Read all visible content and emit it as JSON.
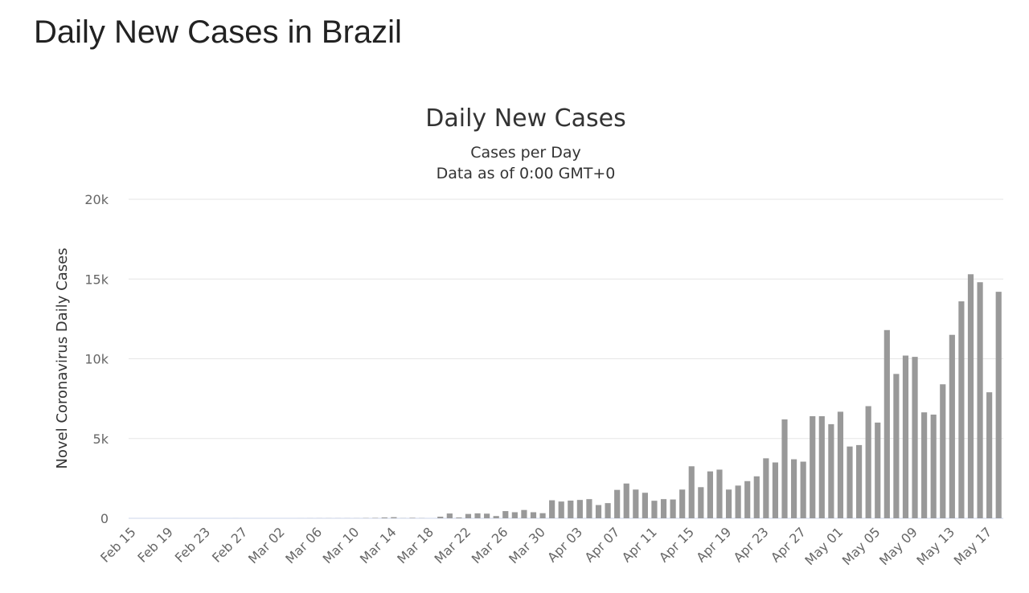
{
  "page": {
    "title": "Daily New Cases in Brazil"
  },
  "chart_data": {
    "type": "bar",
    "title": "Daily New Cases",
    "subtitle": "Cases per Day",
    "subtitle2": "Data as of 0:00 GMT+0",
    "xlabel": "",
    "ylabel": "Novel Coronavirus Daily Cases",
    "ylim": [
      0,
      20000
    ],
    "yticks": [
      "0",
      "5k",
      "10k",
      "15k",
      "20k"
    ],
    "ytick_values": [
      0,
      5000,
      10000,
      15000,
      20000
    ],
    "grid": true,
    "color": "#999999",
    "categories": [
      "Feb 15",
      "Feb 16",
      "Feb 17",
      "Feb 18",
      "Feb 19",
      "Feb 20",
      "Feb 21",
      "Feb 22",
      "Feb 23",
      "Feb 24",
      "Feb 25",
      "Feb 26",
      "Feb 27",
      "Feb 28",
      "Feb 29",
      "Mar 01",
      "Mar 02",
      "Mar 03",
      "Mar 04",
      "Mar 05",
      "Mar 06",
      "Mar 07",
      "Mar 08",
      "Mar 09",
      "Mar 10",
      "Mar 11",
      "Mar 12",
      "Mar 13",
      "Mar 14",
      "Mar 15",
      "Mar 16",
      "Mar 17",
      "Mar 18",
      "Mar 19",
      "Mar 20",
      "Mar 21",
      "Mar 22",
      "Mar 23",
      "Mar 24",
      "Mar 25",
      "Mar 26",
      "Mar 27",
      "Mar 28",
      "Mar 29",
      "Mar 30",
      "Mar 31",
      "Apr 01",
      "Apr 02",
      "Apr 03",
      "Apr 04",
      "Apr 05",
      "Apr 06",
      "Apr 07",
      "Apr 08",
      "Apr 09",
      "Apr 10",
      "Apr 11",
      "Apr 12",
      "Apr 13",
      "Apr 14",
      "Apr 15",
      "Apr 16",
      "Apr 17",
      "Apr 18",
      "Apr 19",
      "Apr 20",
      "Apr 21",
      "Apr 22",
      "Apr 23",
      "Apr 24",
      "Apr 25",
      "Apr 26",
      "Apr 27",
      "Apr 28",
      "Apr 29",
      "Apr 30",
      "May 01",
      "May 02",
      "May 03",
      "May 04",
      "May 05",
      "May 06",
      "May 07",
      "May 08",
      "May 09",
      "May 10",
      "May 11",
      "May 12",
      "May 13",
      "May 14",
      "May 15",
      "May 16",
      "May 17",
      "May 18"
    ],
    "values": [
      0,
      0,
      0,
      0,
      0,
      0,
      0,
      0,
      0,
      0,
      0,
      1,
      0,
      0,
      0,
      0,
      0,
      0,
      2,
      4,
      5,
      6,
      5,
      5,
      6,
      16,
      25,
      52,
      70,
      9,
      30,
      10,
      0,
      100,
      300,
      50,
      270,
      310,
      290,
      140,
      450,
      380,
      520,
      380,
      320,
      1130,
      1050,
      1110,
      1150,
      1200,
      830,
      950,
      1780,
      2180,
      1800,
      1600,
      1100,
      1200,
      1180,
      1800,
      3260,
      1950,
      2940,
      3050,
      1800,
      2050,
      2330,
      2630,
      3760,
      3500,
      6200,
      3700,
      3550,
      6400,
      6400,
      5900,
      6680,
      4500,
      4590,
      7030,
      6000,
      11800,
      9050,
      10200,
      10120,
      6640,
      6500,
      8400,
      11500,
      13600,
      15300,
      14800,
      7900,
      14200
    ],
    "xtick_labels": [
      "Feb 15",
      "Feb 19",
      "Feb 23",
      "Feb 27",
      "Mar 02",
      "Mar 06",
      "Mar 10",
      "Mar 14",
      "Mar 18",
      "Mar 22",
      "Mar 26",
      "Mar 30",
      "Apr 03",
      "Apr 07",
      "Apr 11",
      "Apr 15",
      "Apr 19",
      "Apr 23",
      "Apr 27",
      "May 01",
      "May 05",
      "May 09",
      "May 13",
      "May 17"
    ]
  }
}
